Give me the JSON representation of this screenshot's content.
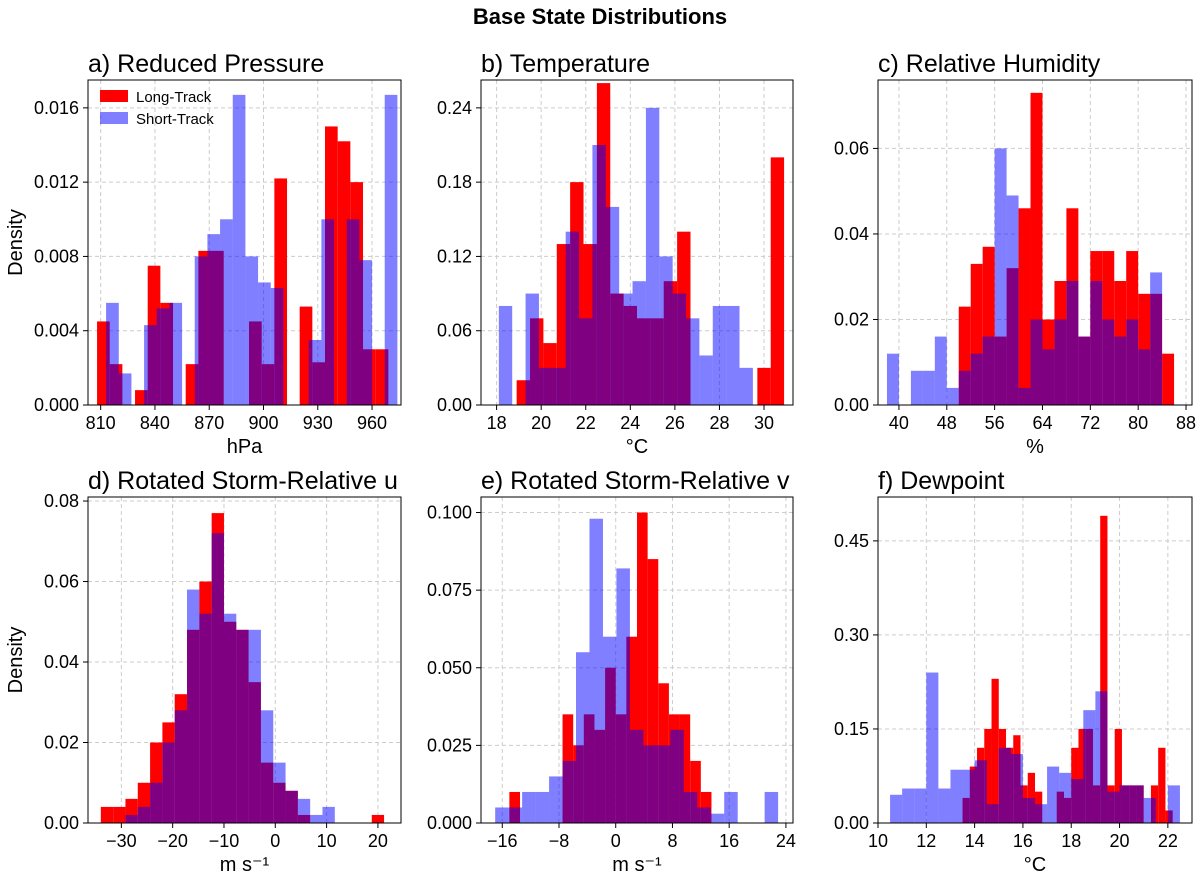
{
  "figure_title": "Base State Distributions",
  "legend": {
    "series": [
      {
        "name": "Long-Track",
        "color": "#ff0000"
      },
      {
        "name": "Short-Track",
        "color": "#7f7fff"
      }
    ],
    "overlap_color": "#800080",
    "placement": "top-left"
  },
  "chart_data": [
    {
      "type": "bar",
      "title": "a) Reduced Pressure",
      "xlabel": "hPa",
      "ylabel": "Density",
      "xlim": [
        803,
        976
      ],
      "ylim": [
        0,
        0.0175
      ],
      "xticks": [
        810,
        840,
        870,
        900,
        930,
        960
      ],
      "xtick_labels": [
        "810",
        "840",
        "870",
        "900",
        "930",
        "960"
      ],
      "yticks": [
        0,
        0.004,
        0.008,
        0.012,
        0.016
      ],
      "ytick_labels": [
        "0.000",
        "0.004",
        "0.008",
        "0.012",
        "0.016"
      ],
      "show_legend": true,
      "series": [
        {
          "name": "Long-Track",
          "edges": [
            808,
            815,
            822,
            829,
            836,
            843,
            850,
            857,
            864,
            871,
            878,
            885,
            892,
            899,
            906,
            913,
            920,
            927,
            934,
            941,
            948,
            955,
            962,
            969
          ],
          "values": [
            0.0045,
            0.0022,
            0,
            0.0008,
            0.0075,
            0.0055,
            0,
            0.0022,
            0.0083,
            0.0083,
            0,
            0,
            0.0045,
            0.0022,
            0.0122,
            0,
            0.0053,
            0.0023,
            0.015,
            0.0142,
            0.012,
            0.003,
            0.003
          ]
        },
        {
          "name": "Short-Track",
          "edges": [
            813,
            820,
            827,
            834,
            841,
            848,
            855,
            862,
            869,
            876,
            883,
            890,
            897,
            904,
            911,
            918,
            925,
            932,
            939,
            946,
            953,
            960,
            967,
            974
          ],
          "values": [
            0.0055,
            0.0017,
            0,
            0.0043,
            0.0052,
            0.0055,
            0,
            0.008,
            0.0092,
            0.01,
            0.0167,
            0.008,
            0.0066,
            0.0063,
            0,
            0,
            0.0035,
            0.01,
            0,
            0.01,
            0.0078,
            0,
            0.0167
          ]
        }
      ]
    },
    {
      "type": "bar",
      "title": "b) Temperature",
      "xlabel": "°C",
      "ylabel": "",
      "xlim": [
        17.3,
        31.3
      ],
      "ylim": [
        0,
        0.2625
      ],
      "xticks": [
        18,
        20,
        22,
        24,
        26,
        28,
        30
      ],
      "xtick_labels": [
        "18",
        "20",
        "22",
        "24",
        "26",
        "28",
        "30"
      ],
      "yticks": [
        0,
        0.06,
        0.12,
        0.18,
        0.24
      ],
      "ytick_labels": [
        "0.00",
        "0.06",
        "0.12",
        "0.18",
        "0.24"
      ],
      "show_legend": false,
      "series": [
        {
          "name": "Long-Track",
          "edges": [
            18.9,
            19.5,
            20.1,
            20.7,
            21.3,
            21.9,
            22.5,
            23.1,
            23.7,
            24.3,
            24.9,
            25.5,
            26.1,
            26.7,
            27.3,
            27.9,
            28.5,
            29.1,
            29.7,
            30.3,
            30.9
          ],
          "values": [
            0.02,
            0.07,
            0.05,
            0.13,
            0.18,
            0.13,
            0.26,
            0.09,
            0.08,
            0.07,
            0.07,
            0.1,
            0.14,
            0,
            0,
            0,
            0,
            0,
            0.03,
            0.2
          ]
        },
        {
          "name": "Short-Track",
          "edges": [
            18.1,
            18.7,
            19.3,
            19.9,
            20.5,
            21.1,
            21.7,
            22.3,
            22.9,
            23.5,
            24.1,
            24.7,
            25.3,
            25.9,
            26.5,
            27.1,
            27.7,
            28.3,
            28.9,
            29.5
          ],
          "values": [
            0.08,
            0,
            0.09,
            0.03,
            0.03,
            0.14,
            0.07,
            0.21,
            0.16,
            0.09,
            0.1,
            0.24,
            0.12,
            0.09,
            0.07,
            0.04,
            0.08,
            0.08,
            0.03
          ]
        }
      ]
    },
    {
      "type": "bar",
      "title": "c) Relative Humidity",
      "xlabel": "%",
      "ylabel": "",
      "xlim": [
        36.5,
        89
      ],
      "ylim": [
        0,
        0.076
      ],
      "xticks": [
        40,
        48,
        56,
        64,
        72,
        80,
        88
      ],
      "xtick_labels": [
        "40",
        "48",
        "56",
        "64",
        "72",
        "80",
        "88"
      ],
      "yticks": [
        0,
        0.02,
        0.04,
        0.06
      ],
      "ytick_labels": [
        "0.00",
        "0.02",
        "0.04",
        "0.06"
      ],
      "show_legend": false,
      "series": [
        {
          "name": "Long-Track",
          "edges": [
            50,
            52,
            54,
            56,
            58,
            60,
            62,
            64,
            66,
            68,
            70,
            72,
            74,
            76,
            78,
            80,
            82,
            84,
            86
          ],
          "values": [
            0.023,
            0.033,
            0.037,
            0.016,
            0.032,
            0.046,
            0.073,
            0.02,
            0.029,
            0.046,
            0.016,
            0.036,
            0.036,
            0.029,
            0.036,
            0.026,
            0.026,
            0.012
          ]
        },
        {
          "name": "Short-Track",
          "edges": [
            38,
            40,
            42,
            44,
            46,
            48,
            50,
            52,
            54,
            56,
            58,
            60,
            62,
            64,
            66,
            68,
            70,
            72,
            74,
            76,
            78,
            80,
            82,
            84
          ],
          "values": [
            0.012,
            0,
            0.008,
            0.008,
            0.016,
            0.004,
            0.008,
            0.012,
            0.016,
            0.06,
            0.049,
            0.004,
            0.02,
            0.013,
            0.02,
            0.029,
            0.016,
            0.029,
            0.02,
            0.016,
            0.02,
            0.013,
            0.031
          ]
        }
      ]
    },
    {
      "type": "bar",
      "title": "d) Rotated Storm-Relative u",
      "xlabel": "m s⁻¹",
      "ylabel": "Density",
      "xlim": [
        -36.5,
        24.5
      ],
      "ylim": [
        0,
        0.081
      ],
      "xticks": [
        -30,
        -20,
        -10,
        0,
        10,
        20
      ],
      "xtick_labels": [
        "−30",
        "−20",
        "−10",
        "0",
        "10",
        "20"
      ],
      "yticks": [
        0,
        0.02,
        0.04,
        0.06,
        0.08
      ],
      "ytick_labels": [
        "0.00",
        "0.02",
        "0.04",
        "0.06",
        "0.08"
      ],
      "show_legend": false,
      "series": [
        {
          "name": "Long-Track",
          "edges": [
            -34,
            -31.6,
            -29.2,
            -26.8,
            -24.4,
            -22,
            -19.6,
            -17.2,
            -14.8,
            -12.4,
            -10,
            -7.6,
            -5.2,
            -2.8,
            -0.4,
            2,
            4.4,
            6.8,
            9.2,
            11.6,
            14,
            16.4,
            18.8,
            21.2
          ],
          "values": [
            0.004,
            0.004,
            0.006,
            0.01,
            0.02,
            0.025,
            0.032,
            0.048,
            0.06,
            0.077,
            0.05,
            0.048,
            0.035,
            0.015,
            0.01,
            0.008,
            0.002,
            0,
            0,
            0,
            0,
            0,
            0.002
          ]
        },
        {
          "name": "Short-Track",
          "edges": [
            -29.2,
            -26.8,
            -24.4,
            -22,
            -19.6,
            -17.2,
            -14.8,
            -12.4,
            -10,
            -7.6,
            -5.2,
            -2.8,
            -0.4,
            2,
            4.4,
            6.8,
            9.2,
            11.6
          ],
          "values": [
            0.002,
            0.004,
            0.01,
            0.02,
            0.028,
            0.058,
            0.052,
            0.072,
            0.052,
            0.048,
            0.048,
            0.028,
            0.015,
            0.008,
            0.006,
            0.002,
            0.004
          ]
        }
      ]
    },
    {
      "type": "bar",
      "title": "e) Rotated Storm-Relative v",
      "xlabel": "m s⁻¹",
      "ylabel": "",
      "xlim": [
        -19,
        25
      ],
      "ylim": [
        0,
        0.105
      ],
      "xticks": [
        -16,
        -8,
        0,
        8,
        16,
        24
      ],
      "xtick_labels": [
        "−16",
        "−8",
        "0",
        "8",
        "16",
        "24"
      ],
      "yticks": [
        0,
        0.025,
        0.05,
        0.075,
        0.1
      ],
      "ytick_labels": [
        "0.000",
        "0.025",
        "0.050",
        "0.075",
        "0.100"
      ],
      "show_legend": false,
      "series": [
        {
          "name": "Long-Track",
          "edges": [
            -15,
            -13.5,
            -12,
            -10.5,
            -9,
            -7.5,
            -6,
            -4.5,
            -3,
            -1.5,
            0,
            1.5,
            3,
            4.5,
            6,
            7.5,
            9,
            10.5,
            12,
            13.5
          ],
          "values": [
            0.01,
            0,
            0,
            0,
            0,
            0.035,
            0.025,
            0.035,
            0.03,
            0.05,
            0.035,
            0.06,
            0.1,
            0.085,
            0.045,
            0.035,
            0.035,
            0.02,
            0.01
          ]
        },
        {
          "name": "Short-Track",
          "edges": [
            -17,
            -15.1,
            -13.2,
            -11.3,
            -9.4,
            -7.5,
            -5.6,
            -3.7,
            -1.8,
            0.1,
            2,
            3.9,
            5.8,
            7.7,
            9.6,
            11.5,
            13.4,
            15.3,
            17.2,
            19.1,
            21,
            22.9
          ],
          "values": [
            0.005,
            0.005,
            0.01,
            0.01,
            0.015,
            0.02,
            0.055,
            0.098,
            0.06,
            0.082,
            0.03,
            0.025,
            0.025,
            0.03,
            0.01,
            0.005,
            0.003,
            0.01,
            0,
            0,
            0.01
          ]
        }
      ]
    },
    {
      "type": "bar",
      "title": "f) Dewpoint",
      "xlabel": "°C",
      "ylabel": "",
      "xlim": [
        10,
        23
      ],
      "ylim": [
        0,
        0.52
      ],
      "xticks": [
        10,
        12,
        14,
        16,
        18,
        20,
        22
      ],
      "xtick_labels": [
        "10",
        "12",
        "14",
        "16",
        "18",
        "20",
        "22"
      ],
      "yticks": [
        0,
        0.15,
        0.3,
        0.45
      ],
      "ytick_labels": [
        "0.00",
        "0.15",
        "0.30",
        "0.45"
      ],
      "show_legend": false,
      "series": [
        {
          "name": "Long-Track",
          "edges": [
            13.5,
            13.8,
            14.1,
            14.4,
            14.7,
            15,
            15.3,
            15.6,
            15.9,
            16.2,
            16.5,
            16.8,
            17.1,
            17.4,
            17.7,
            18,
            18.3,
            18.6,
            18.9,
            19.2,
            19.5,
            19.8,
            20.1,
            20.4,
            20.7,
            21,
            21.3,
            21.6,
            21.9,
            22.2
          ],
          "values": [
            0.04,
            0.09,
            0.12,
            0.15,
            0.23,
            0.15,
            0.12,
            0.14,
            0.06,
            0.08,
            0.05,
            0,
            0,
            0.05,
            0.04,
            0.12,
            0.15,
            0.15,
            0.06,
            0.49,
            0.06,
            0.15,
            0.06,
            0.06,
            0.06,
            0,
            0.06,
            0.12,
            0.02
          ]
        },
        {
          "name": "Short-Track",
          "edges": [
            10.5,
            11,
            11.5,
            12,
            12.5,
            13,
            13.5,
            14,
            14.5,
            15,
            15.5,
            16,
            16.5,
            17,
            17.5,
            18,
            18.5,
            19,
            19.5,
            20,
            20.5,
            21,
            21.5,
            22,
            22.5
          ],
          "values": [
            0.045,
            0.055,
            0.055,
            0.24,
            0.055,
            0.085,
            0.085,
            0.1,
            0.03,
            0.12,
            0.11,
            0.04,
            0.03,
            0.09,
            0.08,
            0.07,
            0.18,
            0.21,
            0.05,
            0.06,
            0.06,
            0.04,
            0,
            0.06
          ]
        }
      ]
    }
  ]
}
